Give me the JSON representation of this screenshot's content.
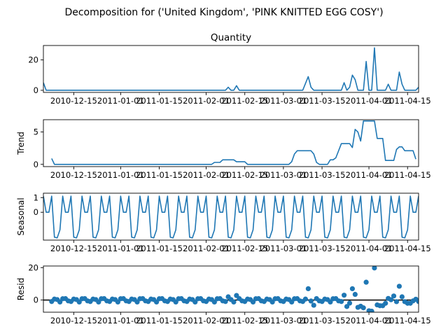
{
  "figure": {
    "suptitle": "Decomposition for ('United Kingdom', 'PINK KNITTED EGG COSY')",
    "line_color": "#1f77b4",
    "zero_line_color": "#000000"
  },
  "chart_data": [
    {
      "type": "line",
      "title": "Quantity",
      "ylabel": "",
      "xlim": [
        "2010-12-04",
        "2011-04-19"
      ],
      "ylim": [
        -1.4,
        29.5
      ],
      "yticks": [
        0,
        20
      ],
      "xticks": [
        "2010-12-15",
        "2011-01-01",
        "2011-01-15",
        "2011-02-01",
        "2011-02-15",
        "2011-03-01",
        "2011-03-15",
        "2011-04-01",
        "2011-04-15"
      ],
      "series": [
        {
          "points": [
            [
              "2010-12-04",
              5
            ],
            [
              "2010-12-05",
              0
            ],
            [
              "2011-02-08",
              0
            ],
            [
              "2011-02-09",
              2
            ],
            [
              "2011-02-10",
              0
            ],
            [
              "2011-02-11",
              0
            ],
            [
              "2011-02-12",
              3
            ],
            [
              "2011-02-13",
              0
            ],
            [
              "2011-03-08",
              0
            ],
            [
              "2011-03-10",
              9
            ],
            [
              "2011-03-11",
              2
            ],
            [
              "2011-03-12",
              0
            ],
            [
              "2011-03-22",
              0
            ],
            [
              "2011-03-23",
              5
            ],
            [
              "2011-03-24",
              0
            ],
            [
              "2011-03-25",
              2
            ],
            [
              "2011-03-26",
              10
            ],
            [
              "2011-03-27",
              7
            ],
            [
              "2011-03-28",
              0
            ],
            [
              "2011-03-30",
              0
            ],
            [
              "2011-03-31",
              19
            ],
            [
              "2011-04-01",
              0
            ],
            [
              "2011-04-02",
              0
            ],
            [
              "2011-04-03",
              28
            ],
            [
              "2011-04-04",
              0
            ],
            [
              "2011-04-07",
              0
            ],
            [
              "2011-04-08",
              4
            ],
            [
              "2011-04-09",
              0
            ],
            [
              "2011-04-11",
              0
            ],
            [
              "2011-04-12",
              12
            ],
            [
              "2011-04-13",
              4
            ],
            [
              "2011-04-14",
              0
            ],
            [
              "2011-04-18",
              0
            ],
            [
              "2011-04-19",
              2
            ]
          ]
        }
      ]
    },
    {
      "type": "line",
      "title": "",
      "ylabel": "Trend",
      "xlim": [
        "2010-12-04",
        "2011-04-19"
      ],
      "ylim": [
        -0.35,
        6.9
      ],
      "yticks": [
        0,
        5
      ],
      "xticks": [
        "2010-12-15",
        "2011-01-01",
        "2011-01-15",
        "2011-02-01",
        "2011-02-15",
        "2011-03-01",
        "2011-03-15",
        "2011-04-01",
        "2011-04-15"
      ],
      "series": [
        {
          "points": [
            [
              "2010-12-07",
              0.9
            ],
            [
              "2010-12-08",
              0
            ],
            [
              "2011-02-03",
              0
            ],
            [
              "2011-02-04",
              0.3
            ],
            [
              "2011-02-06",
              0.3
            ],
            [
              "2011-02-07",
              0.7
            ],
            [
              "2011-02-11",
              0.7
            ],
            [
              "2011-02-12",
              0.4
            ],
            [
              "2011-02-15",
              0.4
            ],
            [
              "2011-02-16",
              0
            ],
            [
              "2011-03-03",
              0
            ],
            [
              "2011-03-04",
              0.4
            ],
            [
              "2011-03-05",
              1.6
            ],
            [
              "2011-03-06",
              2.1
            ],
            [
              "2011-03-11",
              2.1
            ],
            [
              "2011-03-12",
              1.6
            ],
            [
              "2011-03-13",
              0.3
            ],
            [
              "2011-03-14",
              0
            ],
            [
              "2011-03-17",
              0
            ],
            [
              "2011-03-18",
              0.7
            ],
            [
              "2011-03-19",
              0.7
            ],
            [
              "2011-03-20",
              1.0
            ],
            [
              "2011-03-21",
              2.1
            ],
            [
              "2011-03-22",
              3.2
            ],
            [
              "2011-03-25",
              3.2
            ],
            [
              "2011-03-26",
              2.6
            ],
            [
              "2011-03-27",
              5.4
            ],
            [
              "2011-03-28",
              5.0
            ],
            [
              "2011-03-29",
              3.6
            ],
            [
              "2011-03-30",
              6.7
            ],
            [
              "2011-04-03",
              6.7
            ],
            [
              "2011-04-04",
              4.0
            ],
            [
              "2011-04-06",
              4.0
            ],
            [
              "2011-04-07",
              0.6
            ],
            [
              "2011-04-10",
              0.6
            ],
            [
              "2011-04-11",
              2.3
            ],
            [
              "2011-04-12",
              2.7
            ],
            [
              "2011-04-13",
              2.7
            ],
            [
              "2011-04-14",
              2.1
            ],
            [
              "2011-04-17",
              2.1
            ],
            [
              "2011-04-18",
              0.8
            ]
          ]
        }
      ]
    },
    {
      "type": "line",
      "title": "",
      "ylabel": "Seasonal",
      "xlim": [
        "2010-12-04",
        "2011-04-19"
      ],
      "ylim": [
        -1.9,
        1.3
      ],
      "yticks": [
        0,
        1
      ],
      "xticks": [
        "2010-12-15",
        "2011-01-01",
        "2011-01-15",
        "2011-02-01",
        "2011-02-15",
        "2011-03-01",
        "2011-03-15",
        "2011-04-01",
        "2011-04-15"
      ],
      "series": [
        {
          "weekly_pattern": [
            1.1,
            0.0,
            0.0,
            1.1,
            -1.7,
            -1.75,
            -1.2
          ],
          "start": "2010-12-04",
          "end": "2011-04-19"
        }
      ]
    },
    {
      "type": "scatter",
      "title": "",
      "ylabel": "Resid",
      "xlim": [
        "2010-12-04",
        "2011-04-19"
      ],
      "ylim": [
        -7.5,
        21
      ],
      "yticks": [
        0,
        20
      ],
      "zero_line": true,
      "xticks": [
        "2010-12-15",
        "2011-01-01",
        "2011-01-15",
        "2011-02-01",
        "2011-02-15",
        "2011-03-01",
        "2011-03-15",
        "2011-04-01",
        "2011-04-15"
      ],
      "series": [
        {
          "baseline_pattern": [
            -0.9,
            0.6,
            0.3,
            -1.2,
            0.8,
            0.9,
            -0.5
          ],
          "points": [
            [
              "2011-02-09",
              2.0
            ],
            [
              "2011-02-12",
              2.8
            ],
            [
              "2011-03-10",
              7.0
            ],
            [
              "2011-03-11",
              -0.6
            ],
            [
              "2011-03-12",
              -3.2
            ],
            [
              "2011-03-23",
              3.0
            ],
            [
              "2011-03-24",
              -4.0
            ],
            [
              "2011-03-25",
              -1.9
            ],
            [
              "2011-03-26",
              7.0
            ],
            [
              "2011-03-27",
              3.5
            ],
            [
              "2011-03-28",
              -4.5
            ],
            [
              "2011-03-29",
              -3.8
            ],
            [
              "2011-03-30",
              -4.8
            ],
            [
              "2011-03-31",
              11.0
            ],
            [
              "2011-04-01",
              -6.6
            ],
            [
              "2011-04-02",
              -6.9
            ],
            [
              "2011-04-03",
              19.8
            ],
            [
              "2011-04-04",
              -3.0
            ],
            [
              "2011-04-05",
              -3.5
            ],
            [
              "2011-04-06",
              -3.5
            ],
            [
              "2011-04-07",
              -2.0
            ],
            [
              "2011-04-08",
              1.0
            ],
            [
              "2011-04-09",
              0.2
            ],
            [
              "2011-04-10",
              2.5
            ],
            [
              "2011-04-11",
              -1.0
            ],
            [
              "2011-04-12",
              8.5
            ],
            [
              "2011-04-13",
              2.0
            ],
            [
              "2011-04-14",
              -1.0
            ],
            [
              "2011-04-15",
              -2.0
            ],
            [
              "2011-04-16",
              -2.0
            ],
            [
              "2011-04-17",
              -0.5
            ],
            [
              "2011-04-18",
              0.5
            ]
          ]
        }
      ]
    }
  ]
}
